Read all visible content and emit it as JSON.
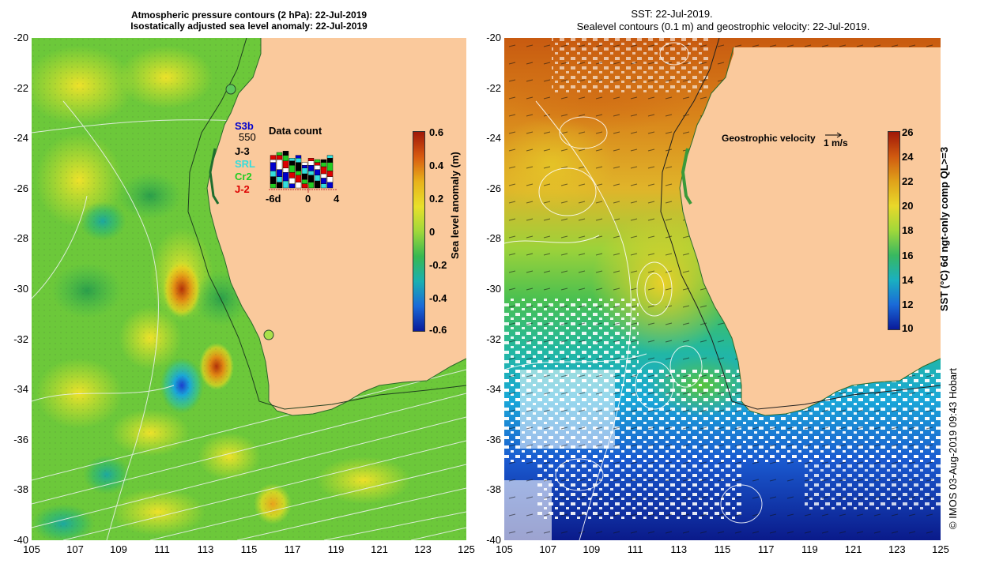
{
  "left_panel": {
    "title_line1": "Atmospheric pressure contours (2 hPa): 22-Jul-2019",
    "title_line2": "Isostatically adjusted sea level anomaly: 22-Jul-2019",
    "colorbar_label": "Sea level anomaly (m)",
    "colorbar_ticks": [
      "0.6",
      "0.4",
      "0.2",
      "0",
      "-0.2",
      "-0.4",
      "-0.6"
    ],
    "satellites": [
      {
        "name": "S3b",
        "color": "#0000cc"
      },
      {
        "name": "J-3",
        "color": "#000000"
      },
      {
        "name": "SRL",
        "color": "#33dddd"
      },
      {
        "name": "Cr2",
        "color": "#22cc22"
      },
      {
        "name": "J-2",
        "color": "#dd0000"
      }
    ],
    "count_value": "550",
    "data_count_title": "Data count",
    "data_count_ticks": [
      "-6d",
      "0",
      "4"
    ]
  },
  "right_panel": {
    "title_line1": "SST: 22-Jul-2019.",
    "title_line2": "Sealevel contours (0.1 m) and geostrophic velocity: 22-Jul-2019.",
    "velocity_label": "Geostrophic velocity",
    "velocity_scale": "1 m/s",
    "colorbar_label": "SST (°C) 6d ngt-only comp QL>=3",
    "colorbar_ticks": [
      "26",
      "24",
      "22",
      "20",
      "18",
      "16",
      "14",
      "12",
      "10"
    ]
  },
  "axes": {
    "y_ticks": [
      "-20",
      "-22",
      "-24",
      "-26",
      "-28",
      "-30",
      "-32",
      "-34",
      "-36",
      "-38",
      "-40"
    ],
    "x_ticks": [
      "105",
      "107",
      "109",
      "111",
      "113",
      "115",
      "117",
      "119",
      "121",
      "123",
      "125"
    ]
  },
  "credit": "© IMOS 03-Aug-2019 09:43 Hobart",
  "colors": {
    "land": "#fac99c",
    "sla_high": "#c2410a",
    "sla_mid": "#7ed23c",
    "sla_low": "#1b3fd0",
    "sst_warm": "#d27214",
    "sst_cool": "#0a2aa0"
  }
}
